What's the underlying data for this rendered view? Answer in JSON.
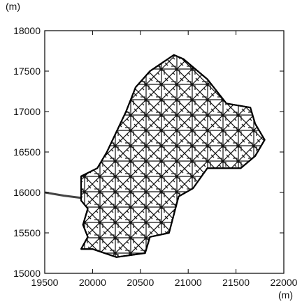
{
  "chart_data": {
    "type": "line",
    "xlim": [
      19500,
      22000
    ],
    "ylim": [
      15000,
      18000
    ],
    "x_ticks": [
      19500,
      20000,
      20500,
      21000,
      21500,
      22000
    ],
    "y_ticks": [
      15000,
      15500,
      16000,
      16500,
      17000,
      17500,
      18000
    ],
    "x_unit": "(m)",
    "y_unit": "(m)",
    "grid": false,
    "series": [
      {
        "style": "connector",
        "points": [
          [
            19500,
            16000
          ],
          [
            19700,
            15960
          ],
          [
            19900,
            15930
          ],
          [
            20000,
            15940
          ]
        ]
      },
      {
        "style": "network-outline",
        "points": [
          [
            19880,
            15300
          ],
          [
            20000,
            15300
          ],
          [
            20250,
            15200
          ],
          [
            20550,
            15250
          ],
          [
            20600,
            15450
          ],
          [
            20800,
            15500
          ],
          [
            20900,
            15950
          ],
          [
            21050,
            16050
          ],
          [
            21200,
            16300
          ],
          [
            21550,
            16300
          ],
          [
            21700,
            16450
          ],
          [
            21800,
            16650
          ],
          [
            21700,
            16850
          ],
          [
            21650,
            17050
          ],
          [
            21400,
            17100
          ],
          [
            21200,
            17400
          ],
          [
            20950,
            17650
          ],
          [
            20850,
            17700
          ],
          [
            20600,
            17500
          ],
          [
            20450,
            17300
          ],
          [
            20350,
            17000
          ],
          [
            20250,
            16750
          ],
          [
            20150,
            16500
          ],
          [
            20050,
            16300
          ],
          [
            19880,
            16200
          ],
          [
            19880,
            15900
          ],
          [
            19950,
            15800
          ],
          [
            19900,
            15600
          ],
          [
            19950,
            15450
          ],
          [
            19880,
            15300
          ]
        ]
      }
    ]
  }
}
